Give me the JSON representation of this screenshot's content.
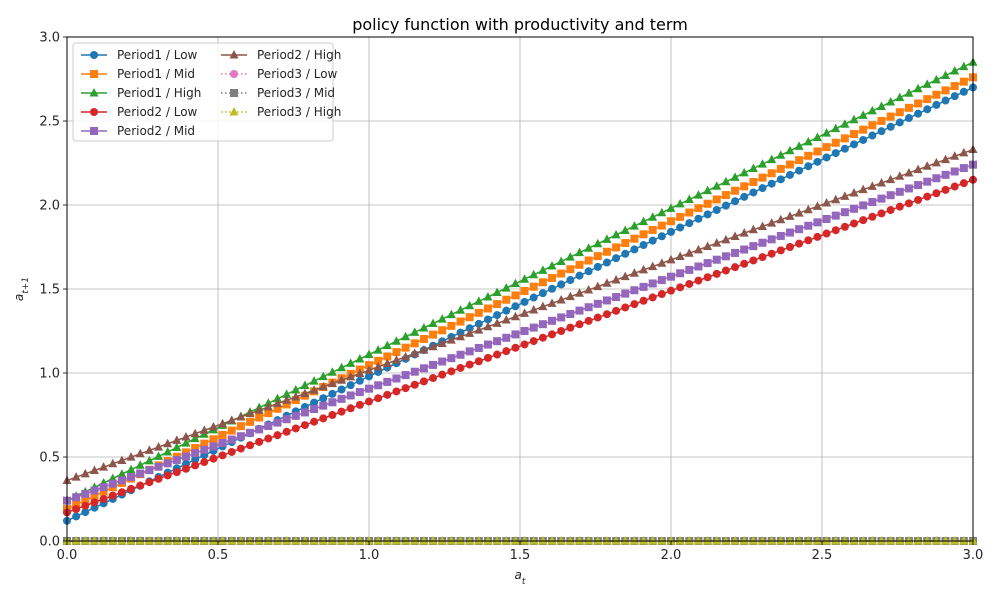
{
  "chart_data": {
    "type": "line",
    "title": "policy function with productivity and term",
    "xlabel": "a_t",
    "ylabel": "a_{t+1}",
    "xlim": [
      0,
      3
    ],
    "ylim": [
      0,
      3
    ],
    "xticks": [
      "0.0",
      "0.5",
      "1.0",
      "1.5",
      "2.0",
      "2.5",
      "3.0"
    ],
    "yticks": [
      "0.0",
      "0.5",
      "1.0",
      "1.5",
      "2.0",
      "2.5",
      "3.0"
    ],
    "grid": true,
    "legend_position": "top-left",
    "x_grid": {
      "start": 0,
      "end": 3,
      "points": 100
    },
    "series": [
      {
        "name": "Period1 / Low",
        "color": "#1f77b4",
        "marker": "circle",
        "linestyle": "solid",
        "y_start": 0.12,
        "y_end": 2.7
      },
      {
        "name": "Period1 / Mid",
        "color": "#ff7f0e",
        "marker": "square",
        "linestyle": "solid",
        "y_start": 0.19,
        "y_end": 2.76
      },
      {
        "name": "Period1 / High",
        "color": "#2ca02c",
        "marker": "triangle",
        "linestyle": "solid",
        "y_start": 0.24,
        "y_end": 2.85
      },
      {
        "name": "Period2 / Low",
        "color": "#d62728",
        "marker": "circle",
        "linestyle": "solid",
        "y_start": 0.17,
        "y_end": 2.15
      },
      {
        "name": "Period2 / Mid",
        "color": "#9467bd",
        "marker": "square",
        "linestyle": "solid",
        "y_start": 0.24,
        "y_end": 2.24
      },
      {
        "name": "Period2 / High",
        "color": "#8c564b",
        "marker": "triangle",
        "linestyle": "solid",
        "y_start": 0.36,
        "y_end": 2.33
      },
      {
        "name": "Period3 / Low",
        "color": "#e377c2",
        "marker": "circle",
        "linestyle": "dotted",
        "y_start": 0.0,
        "y_end": 0.0
      },
      {
        "name": "Period3 / Mid",
        "color": "#7f7f7f",
        "marker": "square",
        "linestyle": "dotted",
        "y_start": 0.0,
        "y_end": 0.0
      },
      {
        "name": "Period3 / High",
        "color": "#bcbd22",
        "marker": "triangle",
        "linestyle": "dotted",
        "y_start": 0.0,
        "y_end": 0.0
      }
    ]
  }
}
